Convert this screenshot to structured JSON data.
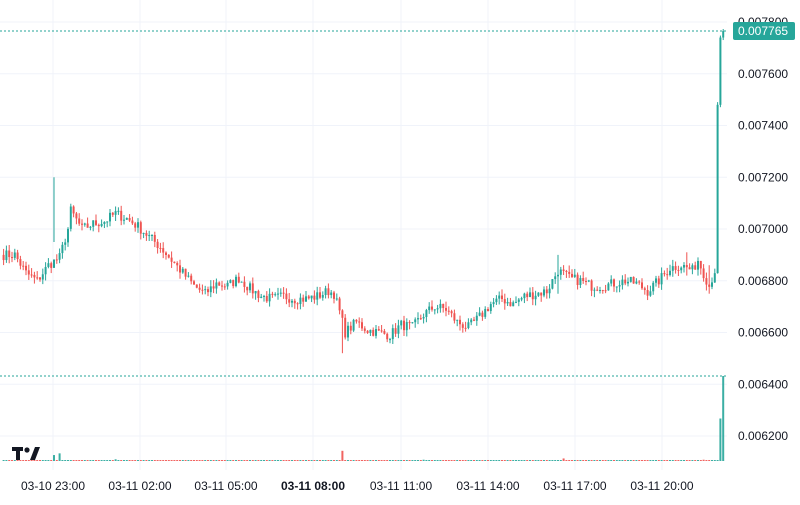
{
  "chart_data": {
    "type": "candlestick",
    "price_axis": {
      "ticks": [
        "0.007800",
        "0.007600",
        "0.007400",
        "0.007200",
        "0.007000",
        "0.006800",
        "0.006600",
        "0.006400",
        "0.006200"
      ],
      "range": [
        0.00613,
        0.00789
      ]
    },
    "time_axis": {
      "labels": [
        "03-10 23:00",
        "03-11 02:00",
        "03-11 05:00",
        "03-11 08:00",
        "03-11 11:00",
        "03-11 14:00",
        "03-11 17:00",
        "03-11 20:00"
      ],
      "bold_label": "03-11 08:00"
    },
    "last_price": {
      "value": 0.007765,
      "label": "0.007765"
    },
    "series_path": [
      [
        0,
        0.0069
      ],
      [
        4,
        0.0069
      ],
      [
        8,
        0.00683
      ],
      [
        12,
        0.0068
      ],
      [
        16,
        0.00686
      ],
      [
        20,
        0.00689
      ],
      [
        23,
        0.007
      ],
      [
        24,
        0.00707
      ],
      [
        28,
        0.007
      ],
      [
        32,
        0.00702
      ],
      [
        36,
        0.00703
      ],
      [
        40,
        0.00706
      ],
      [
        44,
        0.00704
      ],
      [
        48,
        0.00701
      ],
      [
        52,
        0.00697
      ],
      [
        56,
        0.00693
      ],
      [
        60,
        0.00688
      ],
      [
        64,
        0.00683
      ],
      [
        68,
        0.00678
      ],
      [
        72,
        0.00675
      ],
      [
        76,
        0.00679
      ],
      [
        80,
        0.00678
      ],
      [
        84,
        0.00681
      ],
      [
        88,
        0.00677
      ],
      [
        92,
        0.00674
      ],
      [
        96,
        0.00673
      ],
      [
        100,
        0.00674
      ],
      [
        104,
        0.00673
      ],
      [
        108,
        0.00673
      ],
      [
        112,
        0.00674
      ],
      [
        116,
        0.00676
      ],
      [
        118,
        0.00675
      ],
      [
        120,
        0.00668
      ],
      [
        122,
        0.0066
      ],
      [
        126,
        0.00664
      ],
      [
        130,
        0.00661
      ],
      [
        134,
        0.0066
      ],
      [
        138,
        0.00659
      ],
      [
        142,
        0.00663
      ],
      [
        146,
        0.00662
      ],
      [
        150,
        0.00667
      ],
      [
        154,
        0.0067
      ],
      [
        158,
        0.00669
      ],
      [
        162,
        0.00664
      ],
      [
        166,
        0.00662
      ],
      [
        170,
        0.00666
      ],
      [
        174,
        0.00671
      ],
      [
        178,
        0.00673
      ],
      [
        182,
        0.00671
      ],
      [
        186,
        0.00674
      ],
      [
        190,
        0.00675
      ],
      [
        194,
        0.00676
      ],
      [
        198,
        0.00684
      ],
      [
        202,
        0.00681
      ],
      [
        206,
        0.0068
      ],
      [
        210,
        0.00678
      ],
      [
        214,
        0.00678
      ],
      [
        218,
        0.00679
      ],
      [
        222,
        0.0068
      ],
      [
        226,
        0.00679
      ],
      [
        230,
        0.00676
      ],
      [
        234,
        0.0068
      ],
      [
        238,
        0.00685
      ],
      [
        242,
        0.00686
      ],
      [
        246,
        0.00684
      ],
      [
        248,
        0.00688
      ],
      [
        250,
        0.00683
      ],
      [
        252,
        0.00678
      ],
      [
        254,
        0.00684
      ],
      [
        255,
        0.00748
      ],
      [
        256,
        0.00774
      ],
      [
        257,
        0.007765
      ]
    ],
    "spikes": [
      {
        "i": 18,
        "high": 0.0072,
        "low": 0.00695
      },
      {
        "i": 121,
        "high": 0.00669,
        "low": 0.00652
      },
      {
        "i": 198,
        "high": 0.0069,
        "low": 0.00675
      },
      {
        "i": 244,
        "high": 0.00691,
        "low": 0.00682
      },
      {
        "i": 252,
        "high": 0.00686,
        "low": 0.00675
      }
    ],
    "volume_levels": [
      {
        "i": 0,
        "level": 0.002
      },
      {
        "i": 18,
        "level": 0.07
      },
      {
        "i": 20,
        "level": 0.09
      },
      {
        "i": 40,
        "level": 0.02
      },
      {
        "i": 121,
        "level": 0.12
      },
      {
        "i": 150,
        "level": 0.015
      },
      {
        "i": 200,
        "level": 0.03
      },
      {
        "i": 250,
        "level": 0.015
      },
      {
        "i": 256,
        "level": 0.5
      },
      {
        "i": 257,
        "level": 1.0
      }
    ],
    "colors": {
      "up": "#26a69a",
      "down": "#ef5350",
      "grid": "#f0f3fa",
      "axis_text": "#131722",
      "price_line": "#26a69a"
    }
  }
}
